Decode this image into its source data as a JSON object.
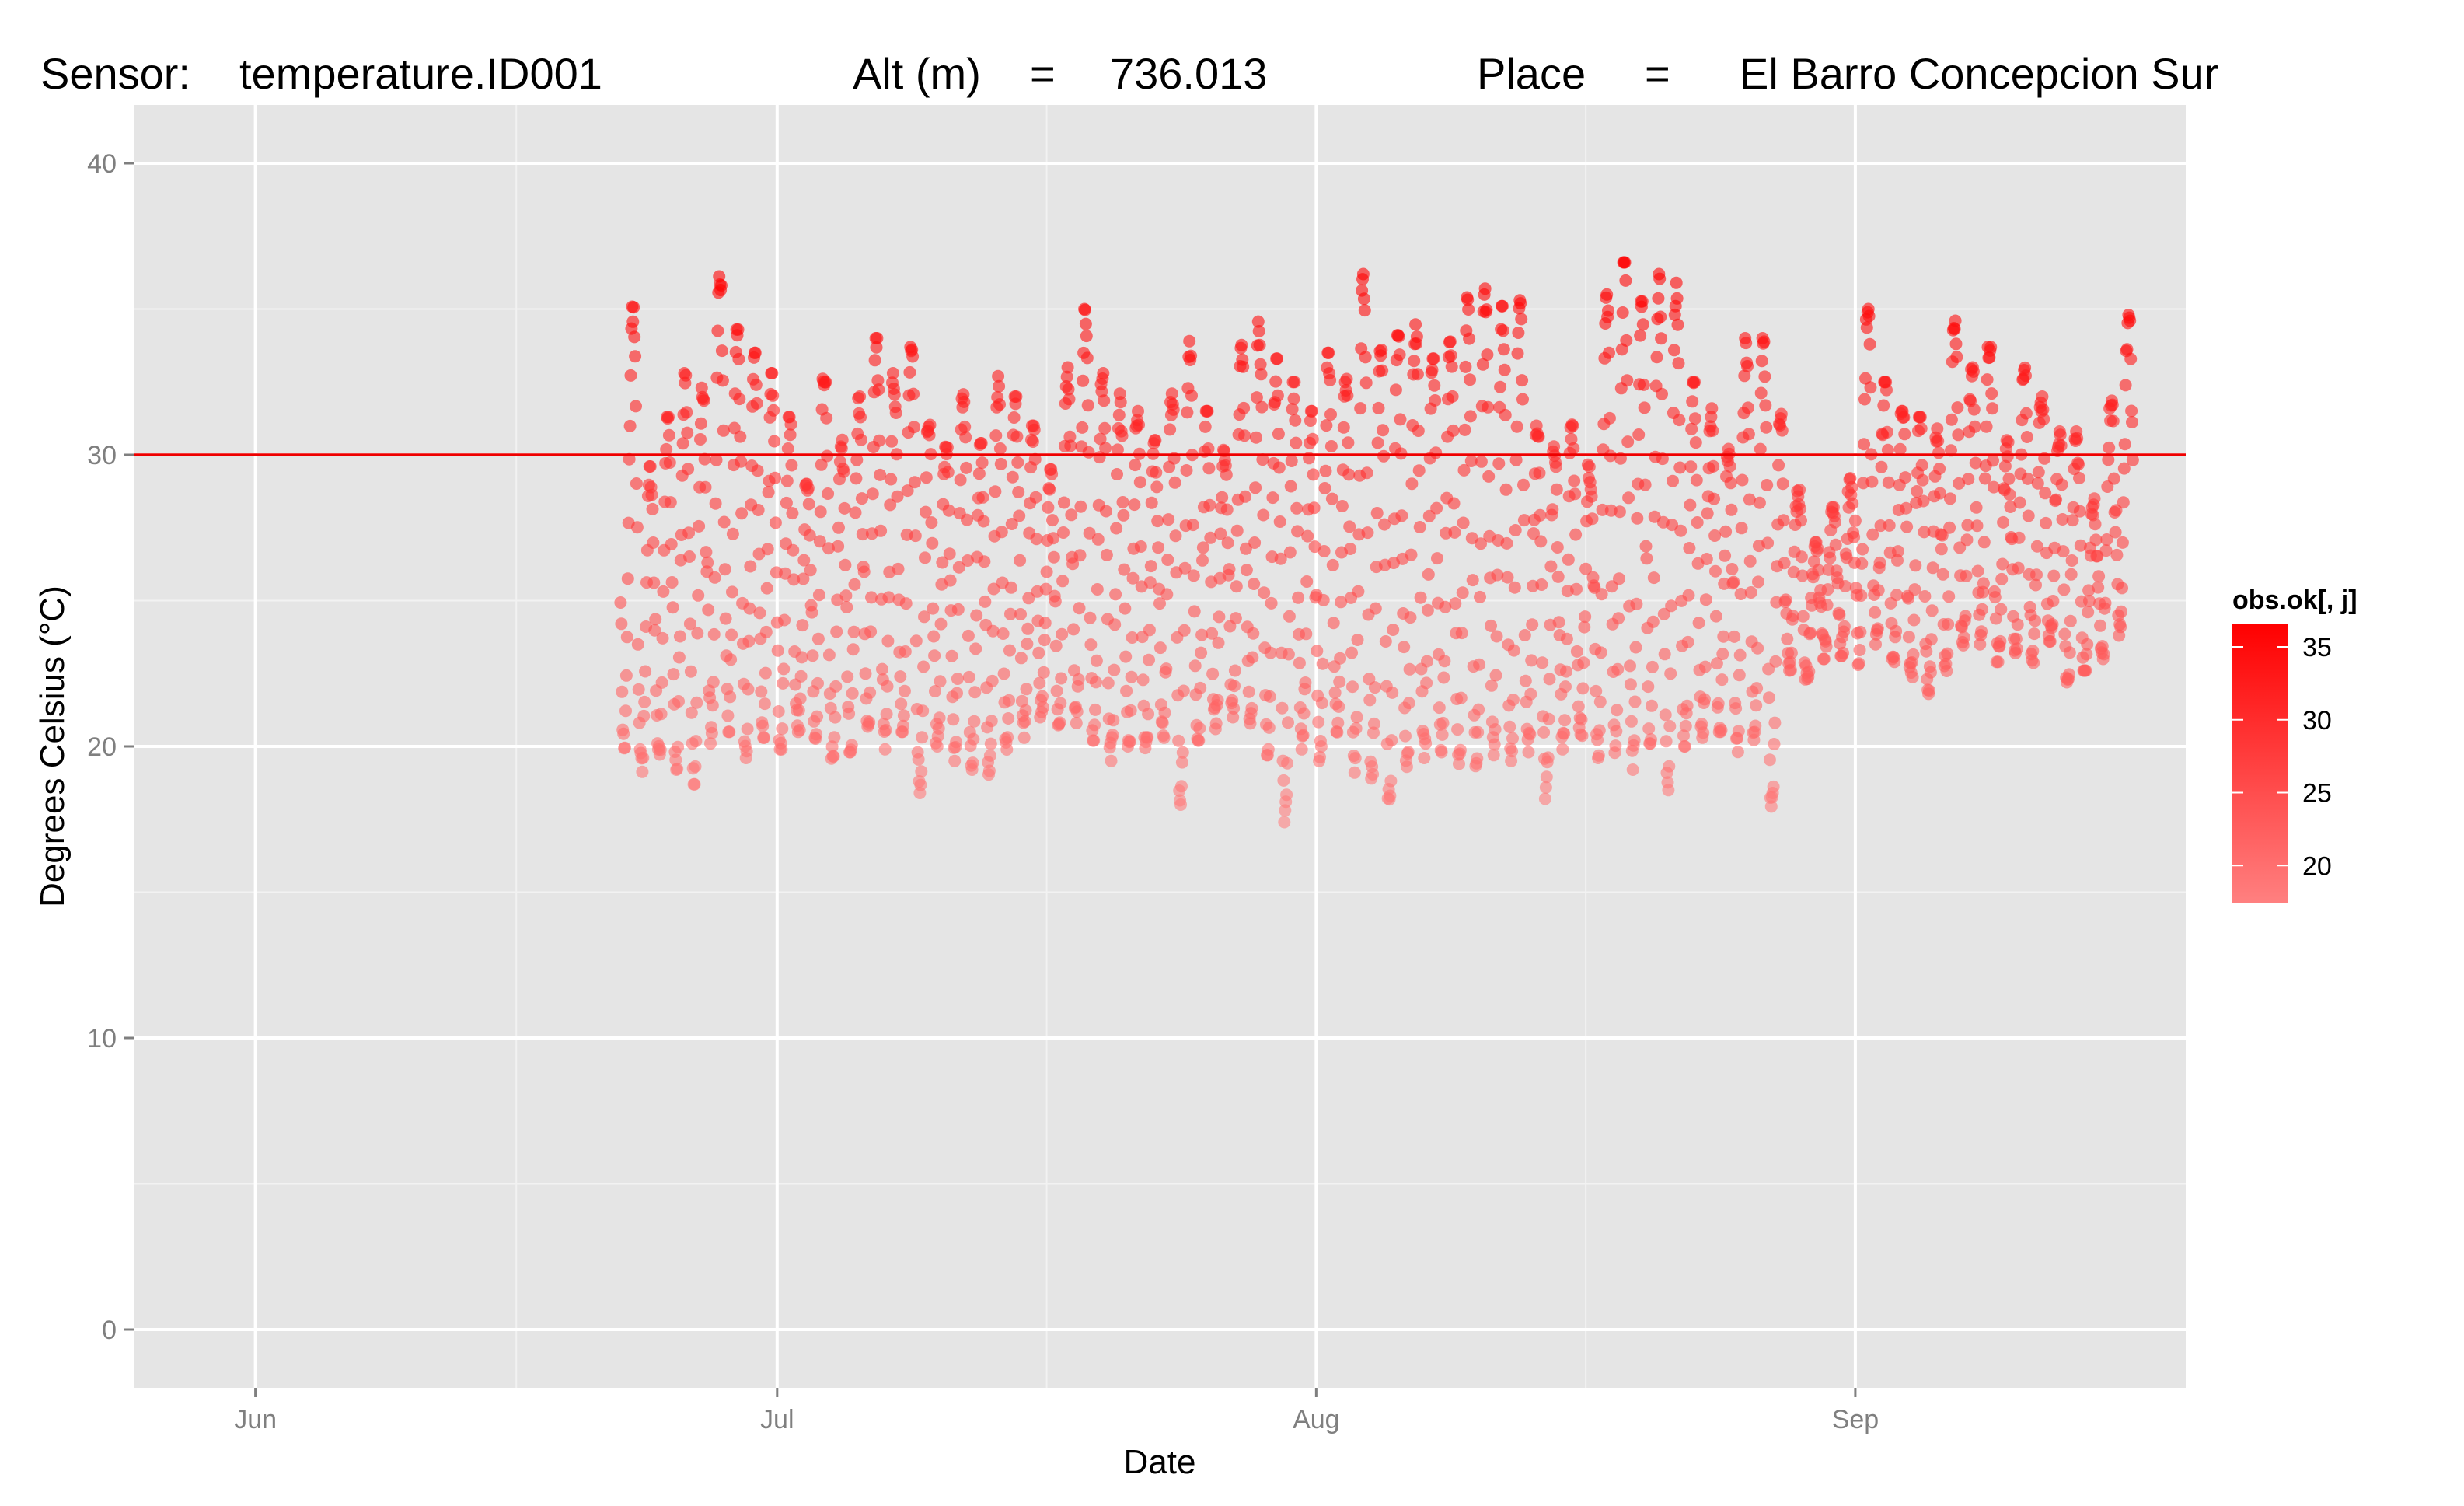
{
  "title": {
    "sensor_label": "Sensor:",
    "sensor_value": "temperature.ID001",
    "alt_label": "Alt (m)",
    "alt_eq": "=",
    "alt_value": "736.013",
    "place_label": "Place",
    "place_eq": "=",
    "place_value": "El Barro Concepcion Sur"
  },
  "chart_data": {
    "type": "scatter",
    "xlabel": "Date",
    "ylabel": "Degrees Celsius (°C)",
    "x_range": [
      "2013-05-25",
      "2013-09-20"
    ],
    "ylim": [
      -2,
      42
    ],
    "x_ticks": [
      {
        "date": "2013-06-01",
        "label": "Jun"
      },
      {
        "date": "2013-07-01",
        "label": "Jul"
      },
      {
        "date": "2013-08-01",
        "label": "Aug"
      },
      {
        "date": "2013-09-01",
        "label": "Sep"
      }
    ],
    "y_ticks": [
      0,
      10,
      20,
      30,
      40
    ],
    "grid": true,
    "reference_line": {
      "y": 30,
      "color": "#ee0000"
    },
    "observation_window": {
      "start": "2013-06-22",
      "end": "2013-09-16"
    },
    "observation_range_c": [
      17.4,
      36.6
    ],
    "colors": {
      "low": "#ff8080",
      "high": "#ff0000",
      "panel": "#e5e5e5",
      "grid": "#ffffff"
    },
    "legend": {
      "title": "obs.ok[, j]",
      "position": "right",
      "range": [
        17.4,
        36.6
      ],
      "breaks": [
        20,
        25,
        30,
        35
      ]
    },
    "series": [
      {
        "values": [
          [
            "2013-06-22",
            35.1
          ],
          [
            "2013-06-23",
            29.6
          ],
          [
            "2013-06-24",
            31.3
          ],
          [
            "2013-06-25",
            32.8
          ],
          [
            "2013-06-26",
            32.3
          ],
          [
            "2013-06-27",
            36.4
          ],
          [
            "2013-06-28",
            34.3
          ],
          [
            "2013-06-29",
            33.5
          ],
          [
            "2013-06-30",
            32.8
          ],
          [
            "2013-07-01",
            31.3
          ],
          [
            "2013-07-02",
            29.0
          ],
          [
            "2013-07-03",
            32.9
          ],
          [
            "2013-07-04",
            30.6
          ],
          [
            "2013-07-05",
            32.0
          ],
          [
            "2013-07-06",
            34.0
          ],
          [
            "2013-07-07",
            32.8
          ],
          [
            "2013-07-08",
            33.7
          ],
          [
            "2013-07-09",
            31.5
          ],
          [
            "2013-07-10",
            30.5
          ],
          [
            "2013-07-11",
            32.4
          ],
          [
            "2013-07-12",
            30.4
          ],
          [
            "2013-07-13",
            32.7
          ],
          [
            "2013-07-14",
            32.0
          ],
          [
            "2013-07-15",
            31.0
          ],
          [
            "2013-07-16",
            29.5
          ],
          [
            "2013-07-17",
            33.0
          ],
          [
            "2013-07-18",
            35.0
          ],
          [
            "2013-07-19",
            32.8
          ],
          [
            "2013-07-20",
            32.1
          ],
          [
            "2013-07-21",
            31.5
          ],
          [
            "2013-07-22",
            30.5
          ],
          [
            "2013-07-23",
            32.1
          ],
          [
            "2013-07-24",
            33.9
          ],
          [
            "2013-07-25",
            31.5
          ],
          [
            "2013-07-26",
            30.4
          ],
          [
            "2013-07-27",
            33.9
          ],
          [
            "2013-07-28",
            34.6
          ],
          [
            "2013-07-29",
            33.3
          ],
          [
            "2013-07-30",
            32.5
          ],
          [
            "2013-07-31",
            31.5
          ],
          [
            "2013-08-01",
            33.5
          ],
          [
            "2013-08-02",
            32.6
          ],
          [
            "2013-08-03",
            36.2
          ],
          [
            "2013-08-04",
            33.6
          ],
          [
            "2013-08-05",
            34.1
          ],
          [
            "2013-08-06",
            34.6
          ],
          [
            "2013-08-07",
            33.3
          ],
          [
            "2013-08-08",
            34.1
          ],
          [
            "2013-08-09",
            35.4
          ],
          [
            "2013-08-10",
            35.7
          ],
          [
            "2013-08-11",
            35.1
          ],
          [
            "2013-08-12",
            35.3
          ],
          [
            "2013-08-13",
            31.0
          ],
          [
            "2013-08-14",
            30.5
          ],
          [
            "2013-08-15",
            31.1
          ],
          [
            "2013-08-16",
            29.8
          ],
          [
            "2013-08-17",
            35.5
          ],
          [
            "2013-08-18",
            36.6
          ],
          [
            "2013-08-19",
            35.3
          ],
          [
            "2013-08-20",
            36.2
          ],
          [
            "2013-08-21",
            35.9
          ],
          [
            "2013-08-22",
            32.5
          ],
          [
            "2013-08-23",
            31.6
          ],
          [
            "2013-08-24",
            30.2
          ],
          [
            "2013-08-25",
            34.0
          ],
          [
            "2013-08-26",
            34.0
          ],
          [
            "2013-08-27",
            31.4
          ],
          [
            "2013-08-28",
            28.8
          ],
          [
            "2013-08-29",
            27.0
          ],
          [
            "2013-08-30",
            28.2
          ],
          [
            "2013-08-31",
            29.2
          ],
          [
            "2013-09-01",
            35.0
          ],
          [
            "2013-09-02",
            32.5
          ],
          [
            "2013-09-03",
            31.5
          ],
          [
            "2013-09-04",
            31.3
          ],
          [
            "2013-09-05",
            30.9
          ],
          [
            "2013-09-06",
            34.6
          ],
          [
            "2013-09-07",
            33.0
          ],
          [
            "2013-09-08",
            33.9
          ],
          [
            "2013-09-09",
            30.5
          ],
          [
            "2013-09-10",
            33.0
          ],
          [
            "2013-09-11",
            32.0
          ],
          [
            "2013-09-12",
            30.8
          ],
          [
            "2013-09-13",
            30.8
          ],
          [
            "2013-09-14",
            28.5
          ],
          [
            "2013-09-15",
            31.9
          ],
          [
            "2013-09-16",
            34.8
          ]
        ]
      },
      {
        "values": [
          [
            "2013-06-22",
            19.9
          ],
          [
            "2013-06-23",
            19.1
          ],
          [
            "2013-06-24",
            19.5
          ],
          [
            "2013-06-25",
            19.2
          ],
          [
            "2013-06-26",
            18.7
          ],
          [
            "2013-06-27",
            20.1
          ],
          [
            "2013-06-28",
            20.5
          ],
          [
            "2013-06-29",
            19.6
          ],
          [
            "2013-06-30",
            20.3
          ],
          [
            "2013-07-01",
            19.9
          ],
          [
            "2013-07-02",
            20.5
          ],
          [
            "2013-07-03",
            20.0
          ],
          [
            "2013-07-04",
            19.3
          ],
          [
            "2013-07-05",
            19.8
          ],
          [
            "2013-07-06",
            20.4
          ],
          [
            "2013-07-07",
            19.9
          ],
          [
            "2013-07-08",
            20.5
          ],
          [
            "2013-07-09",
            18.4
          ],
          [
            "2013-07-10",
            20.0
          ],
          [
            "2013-07-11",
            19.5
          ],
          [
            "2013-07-12",
            19.2
          ],
          [
            "2013-07-13",
            19.0
          ],
          [
            "2013-07-14",
            19.8
          ],
          [
            "2013-07-15",
            20.3
          ],
          [
            "2013-07-16",
            21.0
          ],
          [
            "2013-07-17",
            20.6
          ],
          [
            "2013-07-18",
            20.8
          ],
          [
            "2013-07-19",
            20.2
          ],
          [
            "2013-07-20",
            19.5
          ],
          [
            "2013-07-21",
            20.0
          ],
          [
            "2013-07-22",
            19.7
          ],
          [
            "2013-07-23",
            20.3
          ],
          [
            "2013-07-24",
            18.0
          ],
          [
            "2013-07-25",
            20.2
          ],
          [
            "2013-07-26",
            20.6
          ],
          [
            "2013-07-27",
            20.8
          ],
          [
            "2013-07-28",
            20.5
          ],
          [
            "2013-07-29",
            19.7
          ],
          [
            "2013-07-30",
            17.4
          ],
          [
            "2013-07-31",
            19.8
          ],
          [
            "2013-08-01",
            19.5
          ],
          [
            "2013-08-02",
            20.1
          ],
          [
            "2013-08-03",
            19.1
          ],
          [
            "2013-08-04",
            18.9
          ],
          [
            "2013-08-05",
            17.7
          ],
          [
            "2013-08-06",
            19.3
          ],
          [
            "2013-08-07",
            19.6
          ],
          [
            "2013-08-08",
            19.8
          ],
          [
            "2013-08-09",
            19.4
          ],
          [
            "2013-08-10",
            18.9
          ],
          [
            "2013-08-11",
            19.7
          ],
          [
            "2013-08-12",
            19.5
          ],
          [
            "2013-08-13",
            19.8
          ],
          [
            "2013-08-14",
            18.2
          ],
          [
            "2013-08-15",
            19.9
          ],
          [
            "2013-08-16",
            20.3
          ],
          [
            "2013-08-17",
            19.6
          ],
          [
            "2013-08-18",
            19.7
          ],
          [
            "2013-08-19",
            19.2
          ],
          [
            "2013-08-20",
            20.1
          ],
          [
            "2013-08-21",
            18.5
          ],
          [
            "2013-08-22",
            20.0
          ],
          [
            "2013-08-23",
            20.3
          ],
          [
            "2013-08-24",
            20.5
          ],
          [
            "2013-08-25",
            19.8
          ],
          [
            "2013-08-26",
            20.1
          ],
          [
            "2013-08-27",
            17.7
          ],
          [
            "2013-08-28",
            22.6
          ],
          [
            "2013-08-29",
            22.3
          ],
          [
            "2013-08-30",
            23.0
          ],
          [
            "2013-08-31",
            23.1
          ],
          [
            "2013-09-01",
            22.8
          ],
          [
            "2013-09-02",
            23.5
          ],
          [
            "2013-09-03",
            22.9
          ],
          [
            "2013-09-04",
            22.3
          ],
          [
            "2013-09-05",
            21.8
          ],
          [
            "2013-09-06",
            22.5
          ],
          [
            "2013-09-07",
            23.3
          ],
          [
            "2013-09-08",
            23.5
          ],
          [
            "2013-09-09",
            22.9
          ],
          [
            "2013-09-10",
            23.2
          ],
          [
            "2013-09-11",
            22.7
          ],
          [
            "2013-09-12",
            23.6
          ],
          [
            "2013-09-13",
            22.2
          ],
          [
            "2013-09-14",
            22.6
          ],
          [
            "2013-09-15",
            23.0
          ],
          [
            "2013-09-16",
            23.8
          ]
        ]
      }
    ]
  }
}
